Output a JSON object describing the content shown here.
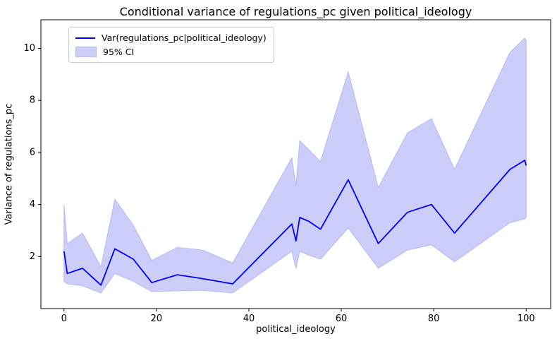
{
  "figure": {
    "title": "Conditional variance of regulations_pc given political_ideology",
    "xlabel": "political_ideology",
    "ylabel": "Variance of regulations_pc"
  },
  "legend": {
    "items": [
      {
        "label": "Var(regulations_pc|political_ideology)",
        "swatch": "line-swatch"
      },
      {
        "label": "95% CI",
        "swatch": "patch-swatch"
      }
    ]
  },
  "colors": {
    "line": "#0000ff",
    "band_fill": "#cdcdf9",
    "band_edge": "#b9b9f2",
    "axis": "#000000",
    "background": "#ffffff"
  },
  "chart_data": {
    "type": "line",
    "title": "Conditional variance of regulations_pc given political_ideology",
    "xlabel": "political_ideology",
    "ylabel": "Variance of regulations_pc",
    "legend_position": "upper left",
    "grid": false,
    "xlim": [
      -5,
      105.3
    ],
    "ylim": [
      0,
      11.1
    ],
    "xticks": [
      0,
      20,
      40,
      60,
      80,
      100
    ],
    "yticks": [
      2,
      4,
      6,
      8,
      10
    ],
    "x": [
      0,
      0.7,
      4,
      8,
      11,
      15,
      19,
      24.5,
      30,
      36.5,
      49.3,
      50.2,
      51,
      53,
      55.5,
      61.5,
      68,
      74.3,
      79.5,
      84.5,
      96.5,
      99.7,
      100
    ],
    "series": [
      {
        "name": "Var(regulations_pc|political_ideology)",
        "values": [
          2.2,
          1.35,
          1.55,
          0.9,
          2.3,
          1.9,
          1.0,
          1.3,
          1.15,
          0.95,
          3.25,
          2.6,
          3.5,
          3.35,
          3.05,
          4.95,
          2.5,
          3.7,
          4.0,
          2.9,
          5.35,
          5.7,
          5.5
        ]
      }
    ],
    "ci_lower": [
      1.05,
      0.95,
      0.88,
      0.6,
      1.35,
      1.05,
      0.65,
      0.68,
      0.7,
      0.6,
      2.2,
      1.55,
      2.2,
      2.05,
      1.9,
      3.1,
      1.55,
      2.25,
      2.45,
      1.8,
      3.3,
      3.45,
      3.5
    ],
    "ci_upper": [
      3.95,
      2.5,
      2.9,
      1.6,
      4.2,
      3.2,
      1.85,
      2.35,
      2.25,
      1.75,
      5.8,
      4.7,
      6.45,
      6.1,
      5.65,
      9.1,
      4.65,
      6.75,
      7.3,
      5.35,
      9.85,
      10.4,
      10.3
    ]
  }
}
